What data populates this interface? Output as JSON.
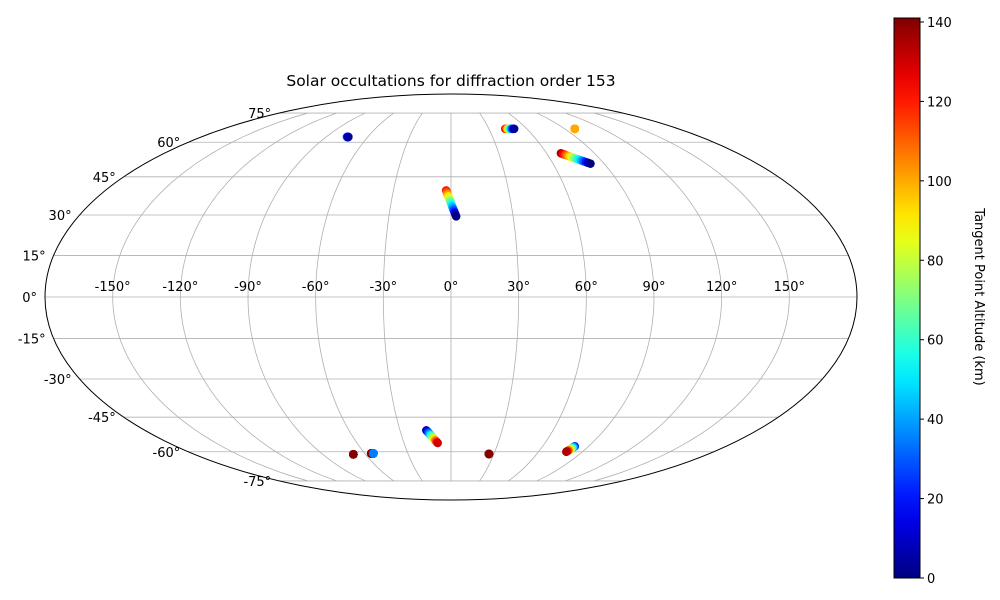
{
  "chart_data": {
    "type": "scatter",
    "projection": "mollweide",
    "title": "Solar occultations for diffraction order 153",
    "grid": true,
    "lon_ticks": [
      -150,
      -120,
      -90,
      -60,
      -30,
      0,
      30,
      60,
      90,
      120,
      150
    ],
    "lon_tick_labels": [
      "-150°",
      "-120°",
      "-90°",
      "-60°",
      "-30°",
      "0°",
      "30°",
      "60°",
      "90°",
      "120°",
      "150°"
    ],
    "lat_ticks": [
      75,
      60,
      45,
      30,
      15,
      0,
      -15,
      -30,
      -45,
      -60,
      -75
    ],
    "lat_tick_labels": [
      "75°",
      "60°",
      "45°",
      "30°",
      "15°",
      "0°",
      "-15°",
      "-30°",
      "-45°",
      "-60°",
      "-75°"
    ],
    "colorbar": {
      "label": "Tangent Point Altitude (km)",
      "colormap": "jet",
      "range": [
        0,
        141
      ],
      "ticks": [
        0,
        20,
        40,
        60,
        80,
        100,
        120,
        140
      ],
      "tick_labels": [
        "0",
        "20",
        "40",
        "60",
        "80",
        "100",
        "120",
        "140"
      ]
    },
    "series": [
      {
        "lon": [
          -75,
          -74
        ],
        "lat": [
          62.5,
          62.5
        ],
        "altitude": [
          40,
          5
        ]
      },
      {
        "lon": [
          -2.5,
          2.5
        ],
        "lat": [
          39.5,
          29.5
        ],
        "altitude": [
          120,
          0
        ]
      },
      {
        "lon": [
          43,
          50
        ],
        "lat": [
          66.5,
          66.5
        ],
        "altitude": [
          130,
          5
        ]
      },
      {
        "lon": [
          69,
          82
        ],
        "lat": [
          55,
          50.5
        ],
        "altitude": [
          135,
          0
        ]
      },
      {
        "lon": [
          98,
          98
        ],
        "lat": [
          66.5,
          66.5
        ],
        "altitude": [
          100,
          100
        ]
      },
      {
        "lon": [
          -14.5,
          -8.5
        ],
        "lat": [
          -50.5,
          -56
        ],
        "altitude": [
          5,
          130
        ]
      },
      {
        "lon": [
          -68.5,
          -68.5
        ],
        "lat": [
          -61.2,
          -61.2
        ],
        "altitude": [
          140,
          140
        ]
      },
      {
        "lon": [
          -55.5,
          -55.5
        ],
        "lat": [
          -60.8,
          -60.8
        ],
        "altitude": [
          140,
          140
        ]
      },
      {
        "lon": [
          -54,
          -54
        ],
        "lat": [
          -60.8,
          -60.8
        ],
        "altitude": [
          35,
          35
        ]
      },
      {
        "lon": [
          26.5,
          26.5
        ],
        "lat": [
          -61,
          -61
        ],
        "altitude": [
          140,
          140
        ]
      },
      {
        "lon": [
          81,
          79
        ],
        "lat": [
          -57.5,
          -60
        ],
        "altitude": [
          20,
          135
        ]
      }
    ]
  }
}
